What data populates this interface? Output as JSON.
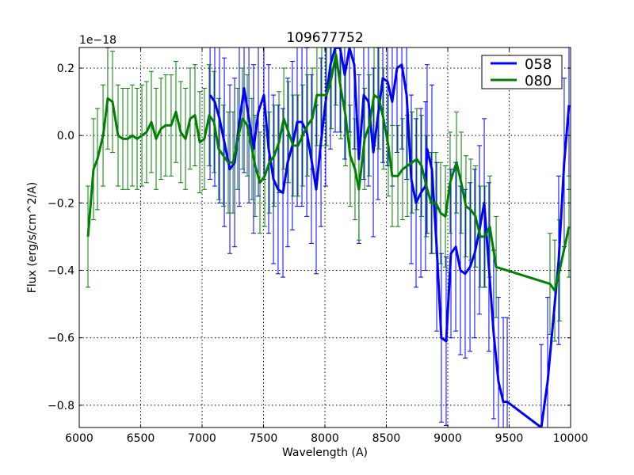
{
  "chart_data": {
    "type": "line",
    "title": "109677752",
    "xlabel": "Wavelength (A)",
    "ylabel": "Flux (erg/s/cm^2/A)",
    "offset_text": "1e−18",
    "xlim": [
      6000,
      10000
    ],
    "ylim": [
      -0.866,
      0.261
    ],
    "xticks": [
      6000,
      6500,
      7000,
      7500,
      8000,
      8500,
      9000,
      9500,
      10000
    ],
    "xtick_labels": [
      "6000",
      "6500",
      "7000",
      "7500",
      "8000",
      "8500",
      "9000",
      "9500",
      "10000"
    ],
    "yticks": [
      -0.8,
      -0.6,
      -0.4,
      -0.2,
      0.0,
      0.2
    ],
    "ytick_labels": [
      "−0.8",
      "−0.6",
      "−0.4",
      "−0.2",
      "0.0",
      "0.2"
    ],
    "grid": true,
    "legend_position": "top-right",
    "series": [
      {
        "name": "058",
        "color": "#0000ff",
        "errcolor": "#0000ff",
        "x": [
          7065,
          7103,
          7142,
          7181,
          7226,
          7265,
          7303,
          7342,
          7381,
          7419,
          7458,
          7503,
          7542,
          7581,
          7619,
          7658,
          7697,
          7735,
          7774,
          7813,
          7852,
          7890,
          7929,
          7968,
          8006,
          8045,
          8084,
          8123,
          8161,
          8200,
          8239,
          8277,
          8316,
          8355,
          8394,
          8432,
          8471,
          8510,
          8548,
          8587,
          8626,
          8665,
          8703,
          8742,
          8781,
          8819,
          8832,
          8871,
          8910,
          8948,
          8987,
          9026,
          9065,
          9103,
          9142,
          9181,
          9219,
          9258,
          9297,
          9335,
          9374,
          9413,
          9452,
          9484,
          9761,
          9813,
          9903,
          9948,
          9987
        ],
        "y": [
          0.12,
          0.1,
          0.05,
          -0.02,
          -0.1,
          -0.08,
          0.04,
          0.14,
          0.05,
          -0.04,
          0.07,
          0.12,
          -0.04,
          -0.13,
          -0.16,
          -0.17,
          -0.08,
          -0.03,
          0.04,
          0.04,
          0.01,
          -0.07,
          -0.16,
          -0.02,
          0.1,
          0.21,
          0.26,
          0.26,
          0.18,
          0.26,
          0.21,
          -0.07,
          0.12,
          0.1,
          -0.05,
          0.06,
          0.17,
          0.16,
          0.1,
          0.2,
          0.21,
          0.12,
          -0.13,
          -0.2,
          -0.17,
          -0.15,
          -0.04,
          -0.1,
          -0.33,
          -0.6,
          -0.61,
          -0.35,
          -0.33,
          -0.4,
          -0.41,
          -0.39,
          -0.35,
          -0.28,
          -0.2,
          -0.39,
          -0.59,
          -0.73,
          -0.79,
          -0.79,
          -0.87,
          -0.73,
          -0.37,
          -0.08,
          0.09
        ],
        "yerr": 0.25
      },
      {
        "name": "080",
        "color": "#008000",
        "errcolor": "#008000",
        "x": [
          6071,
          6116,
          6148,
          6194,
          6232,
          6271,
          6316,
          6355,
          6394,
          6432,
          6471,
          6510,
          6548,
          6587,
          6626,
          6665,
          6703,
          6748,
          6787,
          6826,
          6865,
          6903,
          6942,
          6981,
          7019,
          7058,
          7097,
          7135,
          7174,
          7213,
          7252,
          7290,
          7329,
          7368,
          7406,
          7432,
          7471,
          7510,
          7548,
          7587,
          7626,
          7665,
          7703,
          7742,
          7781,
          7819,
          7858,
          7897,
          7935,
          7974,
          8013,
          8052,
          8090,
          8129,
          8168,
          8206,
          8245,
          8277,
          8323,
          8361,
          8400,
          8439,
          8477,
          8516,
          8548,
          8594,
          8632,
          8671,
          8710,
          8748,
          8787,
          8826,
          8865,
          8903,
          8942,
          8981,
          9019,
          9071,
          9110,
          9148,
          9187,
          9226,
          9265,
          9303,
          9342,
          9394,
          9832,
          9871,
          9910,
          9987
        ],
        "y": [
          -0.3,
          -0.1,
          -0.07,
          0.0,
          0.11,
          0.1,
          0.0,
          -0.01,
          -0.01,
          0.0,
          -0.01,
          0.0,
          0.01,
          0.04,
          -0.01,
          0.02,
          0.03,
          0.03,
          0.07,
          0.01,
          -0.01,
          0.05,
          0.06,
          -0.02,
          -0.01,
          0.06,
          0.04,
          -0.04,
          -0.06,
          -0.08,
          -0.08,
          -0.01,
          0.05,
          0.03,
          -0.04,
          -0.09,
          -0.14,
          -0.12,
          -0.08,
          -0.06,
          -0.02,
          0.05,
          0.01,
          -0.03,
          -0.03,
          0.0,
          0.03,
          0.05,
          0.12,
          0.12,
          0.12,
          0.17,
          0.24,
          0.14,
          0.06,
          -0.06,
          -0.1,
          -0.16,
          -0.01,
          0.03,
          0.12,
          0.11,
          0.05,
          -0.03,
          -0.12,
          -0.12,
          -0.1,
          -0.09,
          -0.08,
          -0.07,
          -0.09,
          -0.15,
          -0.2,
          -0.2,
          -0.23,
          -0.24,
          -0.14,
          -0.08,
          -0.14,
          -0.21,
          -0.22,
          -0.24,
          -0.3,
          -0.3,
          -0.27,
          -0.39,
          -0.44,
          -0.46,
          -0.4,
          -0.27
        ],
        "yerr": 0.15
      }
    ]
  }
}
